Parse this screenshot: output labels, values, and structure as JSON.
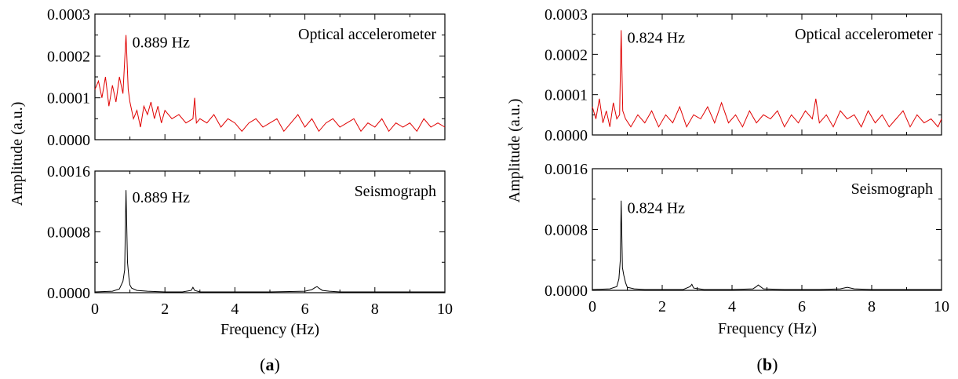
{
  "figure": {
    "captions": [
      {
        "open": "(",
        "letter": "a",
        "close": ")"
      },
      {
        "open": "(",
        "letter": "b",
        "close": ")"
      }
    ]
  },
  "chart_data": [
    {
      "type": "line",
      "panel": "a",
      "ylabel": "Amplitude (a.u.)",
      "xlabel": "Frequency (Hz)",
      "subplots": [
        {
          "label": "Optical accelerometer",
          "color": "#e00000",
          "peak_annotation": "0.889 Hz",
          "peak": {
            "x": 0.889,
            "y": 0.00025
          },
          "xlim": [
            0,
            10
          ],
          "ylim": [
            0,
            0.0003
          ],
          "yticks": [
            "0.0000",
            "0.0001",
            "0.0002",
            "0.0003"
          ],
          "ytick_values": [
            0,
            0.0001,
            0.0002,
            0.0003
          ],
          "series": [
            {
              "x": [
                0,
                0.1,
                0.2,
                0.3,
                0.4,
                0.5,
                0.6,
                0.7,
                0.8,
                0.889,
                0.95,
                1.0,
                1.1,
                1.2,
                1.3,
                1.4,
                1.5,
                1.6,
                1.7,
                1.8,
                1.9,
                2.0,
                2.2,
                2.4,
                2.6,
                2.8,
                2.85,
                2.9,
                3.0,
                3.2,
                3.4,
                3.6,
                3.8,
                4.0,
                4.2,
                4.4,
                4.6,
                4.8,
                5.0,
                5.2,
                5.4,
                5.6,
                5.8,
                6.0,
                6.2,
                6.4,
                6.6,
                6.8,
                7.0,
                7.2,
                7.4,
                7.6,
                7.8,
                8.0,
                8.2,
                8.4,
                8.6,
                8.8,
                9.0,
                9.2,
                9.4,
                9.6,
                9.8,
                10.0
              ],
              "y": [
                0.00012,
                0.00014,
                0.0001,
                0.00015,
                8e-05,
                0.00013,
                9e-05,
                0.00015,
                0.00011,
                0.00025,
                0.00012,
                9e-05,
                5e-05,
                7e-05,
                3e-05,
                8e-05,
                6e-05,
                9e-05,
                5e-05,
                8e-05,
                4e-05,
                7e-05,
                5e-05,
                6e-05,
                4e-05,
                5e-05,
                0.0001,
                4e-05,
                5e-05,
                4e-05,
                6e-05,
                3e-05,
                5e-05,
                4e-05,
                2e-05,
                4e-05,
                5e-05,
                3e-05,
                4e-05,
                5e-05,
                2e-05,
                4e-05,
                6e-05,
                3e-05,
                5e-05,
                2e-05,
                4e-05,
                5e-05,
                3e-05,
                4e-05,
                5e-05,
                2e-05,
                4e-05,
                3e-05,
                5e-05,
                2e-05,
                4e-05,
                3e-05,
                4e-05,
                2e-05,
                5e-05,
                3e-05,
                4e-05,
                3e-05
              ]
            }
          ]
        },
        {
          "label": "Seismograph",
          "color": "#000000",
          "peak_annotation": "0.889 Hz",
          "peak": {
            "x": 0.889,
            "y": 0.00135
          },
          "xlim": [
            0,
            10
          ],
          "ylim": [
            0,
            0.0016
          ],
          "xticks": [
            "0",
            "2",
            "4",
            "6",
            "8",
            "10"
          ],
          "xtick_values": [
            0,
            2,
            4,
            6,
            8,
            10
          ],
          "yticks": [
            "0.0000",
            "0.0008",
            "0.0016"
          ],
          "ytick_values": [
            0,
            0.0008,
            0.0016
          ],
          "series": [
            {
              "x": [
                0,
                0.5,
                0.7,
                0.8,
                0.85,
                0.889,
                0.93,
                0.97,
                1.0,
                1.05,
                1.2,
                1.5,
                2.0,
                2.5,
                2.75,
                2.8,
                2.85,
                3.0,
                4.0,
                5.0,
                6.0,
                6.2,
                6.3,
                6.35,
                6.4,
                6.5,
                6.7,
                7.0,
                8.0,
                9.0,
                10.0
              ],
              "y": [
                1e-05,
                2e-05,
                5e-05,
                0.00015,
                0.0003,
                0.00135,
                0.0004,
                0.0002,
                0.0001,
                6e-05,
                3e-05,
                2e-05,
                1e-05,
                1e-05,
                3e-05,
                7e-05,
                3e-05,
                1e-05,
                1e-05,
                1e-05,
                2e-05,
                4e-05,
                7e-05,
                8e-05,
                6e-05,
                3e-05,
                2e-05,
                1e-05,
                1e-05,
                1e-05,
                1e-05
              ]
            }
          ]
        }
      ]
    },
    {
      "type": "line",
      "panel": "b",
      "ylabel": "Amplitude (a.u.)",
      "xlabel": "Frequency (Hz)",
      "subplots": [
        {
          "label": "Optical accelerometer",
          "color": "#e00000",
          "peak_annotation": "0.824 Hz",
          "peak": {
            "x": 0.824,
            "y": 0.00026
          },
          "xlim": [
            0,
            10
          ],
          "ylim": [
            0,
            0.0003
          ],
          "yticks": [
            "0.0000",
            "0.0001",
            "0.0002",
            "0.0003"
          ],
          "ytick_values": [
            0,
            0.0001,
            0.0002,
            0.0003
          ],
          "series": [
            {
              "x": [
                0,
                0.1,
                0.2,
                0.3,
                0.4,
                0.5,
                0.6,
                0.7,
                0.78,
                0.824,
                0.87,
                0.95,
                1.1,
                1.3,
                1.5,
                1.7,
                1.9,
                2.1,
                2.3,
                2.5,
                2.7,
                2.9,
                3.1,
                3.3,
                3.5,
                3.7,
                3.9,
                4.1,
                4.3,
                4.5,
                4.7,
                4.9,
                5.1,
                5.3,
                5.5,
                5.7,
                5.9,
                6.1,
                6.3,
                6.4,
                6.5,
                6.7,
                6.9,
                7.1,
                7.3,
                7.5,
                7.7,
                7.9,
                8.1,
                8.3,
                8.5,
                8.7,
                8.9,
                9.1,
                9.3,
                9.5,
                9.7,
                9.9,
                10.0
              ],
              "y": [
                7e-05,
                4e-05,
                9e-05,
                3e-05,
                6e-05,
                2e-05,
                8e-05,
                4e-05,
                5e-05,
                0.00026,
                6e-05,
                4e-05,
                2e-05,
                5e-05,
                3e-05,
                6e-05,
                2e-05,
                5e-05,
                3e-05,
                7e-05,
                2e-05,
                5e-05,
                4e-05,
                7e-05,
                3e-05,
                8e-05,
                3e-05,
                5e-05,
                2e-05,
                6e-05,
                3e-05,
                5e-05,
                4e-05,
                6e-05,
                2e-05,
                5e-05,
                3e-05,
                6e-05,
                4e-05,
                9e-05,
                3e-05,
                5e-05,
                2e-05,
                6e-05,
                4e-05,
                5e-05,
                2e-05,
                6e-05,
                3e-05,
                5e-05,
                2e-05,
                4e-05,
                6e-05,
                2e-05,
                5e-05,
                3e-05,
                4e-05,
                2e-05,
                4e-05
              ]
            }
          ]
        },
        {
          "label": "Seismograph",
          "color": "#000000",
          "peak_annotation": "0.824 Hz",
          "peak": {
            "x": 0.824,
            "y": 0.00118
          },
          "xlim": [
            0,
            10
          ],
          "ylim": [
            0,
            0.0016
          ],
          "xticks": [
            "0",
            "2",
            "4",
            "6",
            "8",
            "10"
          ],
          "xtick_values": [
            0,
            2,
            4,
            6,
            8,
            10
          ],
          "yticks": [
            "0.0000",
            "0.0008",
            "0.0016"
          ],
          "ytick_values": [
            0,
            0.0008,
            0.0016
          ],
          "series": [
            {
              "x": [
                0,
                0.5,
                0.7,
                0.76,
                0.8,
                0.824,
                0.86,
                0.9,
                0.95,
                1.0,
                1.2,
                1.5,
                2.0,
                2.6,
                2.8,
                2.85,
                2.9,
                3.2,
                4.0,
                4.6,
                4.7,
                4.75,
                4.9,
                5.5,
                6.5,
                7.1,
                7.3,
                7.5,
                8.0,
                9.0,
                10.0
              ],
              "y": [
                1e-05,
                2e-05,
                5e-05,
                0.00015,
                0.0004,
                0.00118,
                0.0003,
                0.0002,
                0.0001,
                4e-05,
                2e-05,
                1e-05,
                1e-05,
                1e-05,
                5e-05,
                8e-05,
                3e-05,
                1e-05,
                1e-05,
                2e-05,
                5e-05,
                7e-05,
                2e-05,
                1e-05,
                1e-05,
                2e-05,
                4e-05,
                2e-05,
                1e-05,
                1e-05,
                1e-05
              ]
            }
          ]
        }
      ]
    }
  ]
}
